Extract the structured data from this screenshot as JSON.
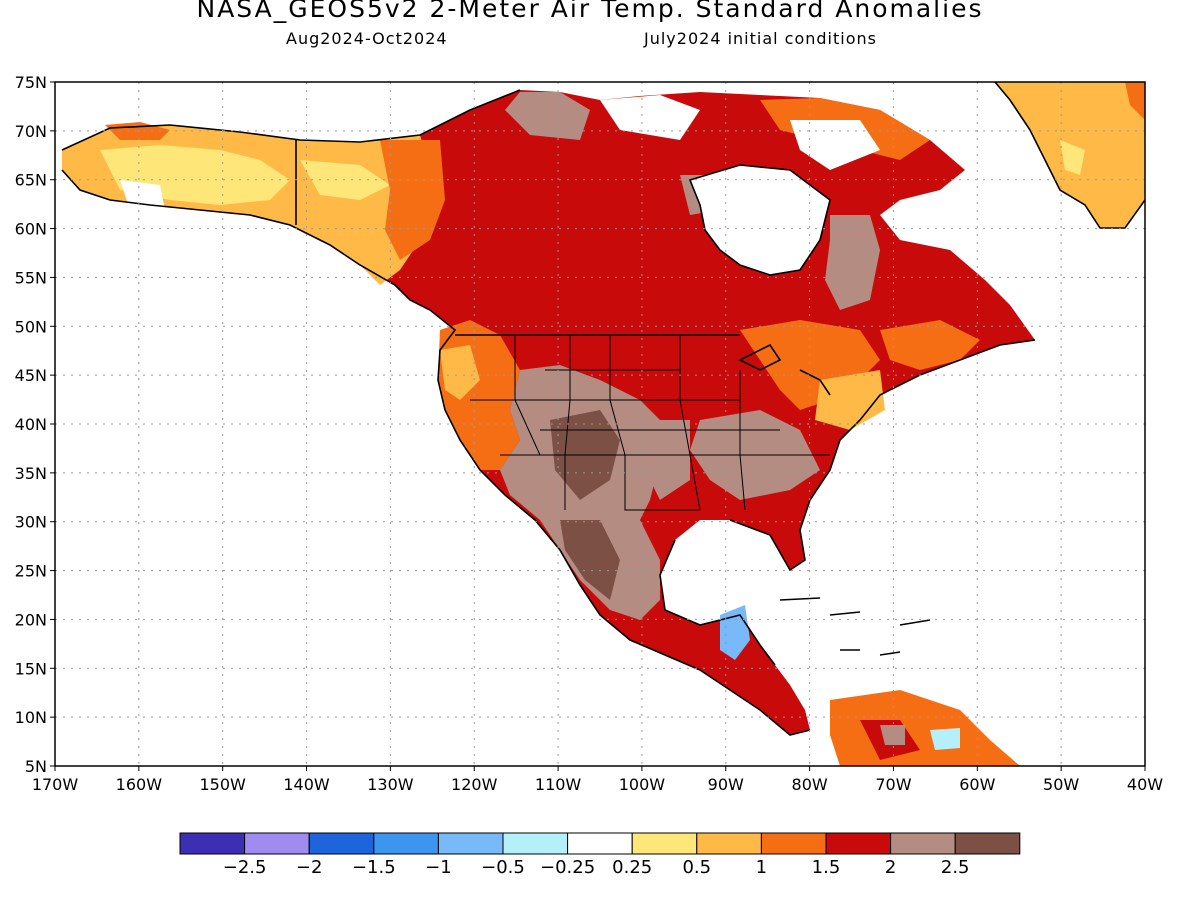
{
  "title": "NASA_GEOS5v2 2-Meter Air Temp. Standard Anomalies",
  "subtitle_left": "Aug2024-Oct2024",
  "subtitle_right": "July2024 initial conditions",
  "axes": {
    "lat_ticks": [
      "75N",
      "70N",
      "65N",
      "60N",
      "55N",
      "50N",
      "45N",
      "40N",
      "35N",
      "30N",
      "25N",
      "20N",
      "15N",
      "10N",
      "5N"
    ],
    "lon_ticks": [
      "170W",
      "160W",
      "150W",
      "140W",
      "130W",
      "120W",
      "110W",
      "100W",
      "90W",
      "80W",
      "70W",
      "60W",
      "50W",
      "40W"
    ],
    "lat_range": [
      5,
      75
    ],
    "lon_range": [
      -170,
      -40
    ],
    "grid": "dotted"
  },
  "colorbar": {
    "labels": [
      "-2.5",
      "-2",
      "-1.5",
      "-1",
      "-0.5",
      "-0.25",
      "0.25",
      "0.5",
      "1",
      "1.5",
      "2",
      "2.5"
    ],
    "colors": [
      "#3c2fb4",
      "#a08cf0",
      "#1e64dc",
      "#3c96f0",
      "#78b9fa",
      "#b4f0fa",
      "#ffffff",
      "#ffe678",
      "#ffb946",
      "#f56e14",
      "#c80a0a",
      "#b48c82",
      "#7d5046"
    ]
  },
  "map_colors": {
    "land_base": "#c80a0a",
    "coast": "#000000",
    "water": "#ffffff"
  }
}
